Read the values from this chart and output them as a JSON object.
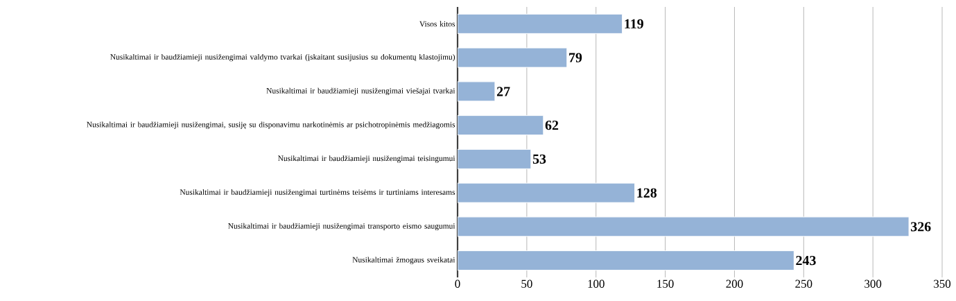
{
  "chart_data": {
    "type": "bar",
    "orientation": "horizontal",
    "categories": [
      "Visos kitos",
      "Nusikaltimai ir baudžiamieji nusižengimai valdymo tvarkai (įskaitant susijusius su dokumentų klastojimu)",
      "Nusikaltimai ir baudžiamieji nusižengimai viešajai tvarkai",
      "Nusikaltimai ir baudžiamieji nusižengimai, susiję su disponavimu narkotinėmis ar psichotropinėmis medžiagomis",
      "Nusikaltimai ir baudžiamieji nusižengimai teisingumui",
      "Nusikaltimai ir baudžiamieji nusižengimai turtinėms teisėms ir turtiniams interesams",
      "Nusikaltimai ir baudžiamieji nusižengimai transporto eismo saugumui",
      "Nusikaltimai žmogaus sveikatai"
    ],
    "values": [
      119,
      79,
      27,
      62,
      53,
      128,
      326,
      243
    ],
    "color": "#95b3d7",
    "xlim": [
      0,
      350
    ],
    "xticks": [
      0,
      50,
      100,
      150,
      200,
      250,
      300,
      350
    ],
    "grid": "x",
    "data_labels": true
  }
}
